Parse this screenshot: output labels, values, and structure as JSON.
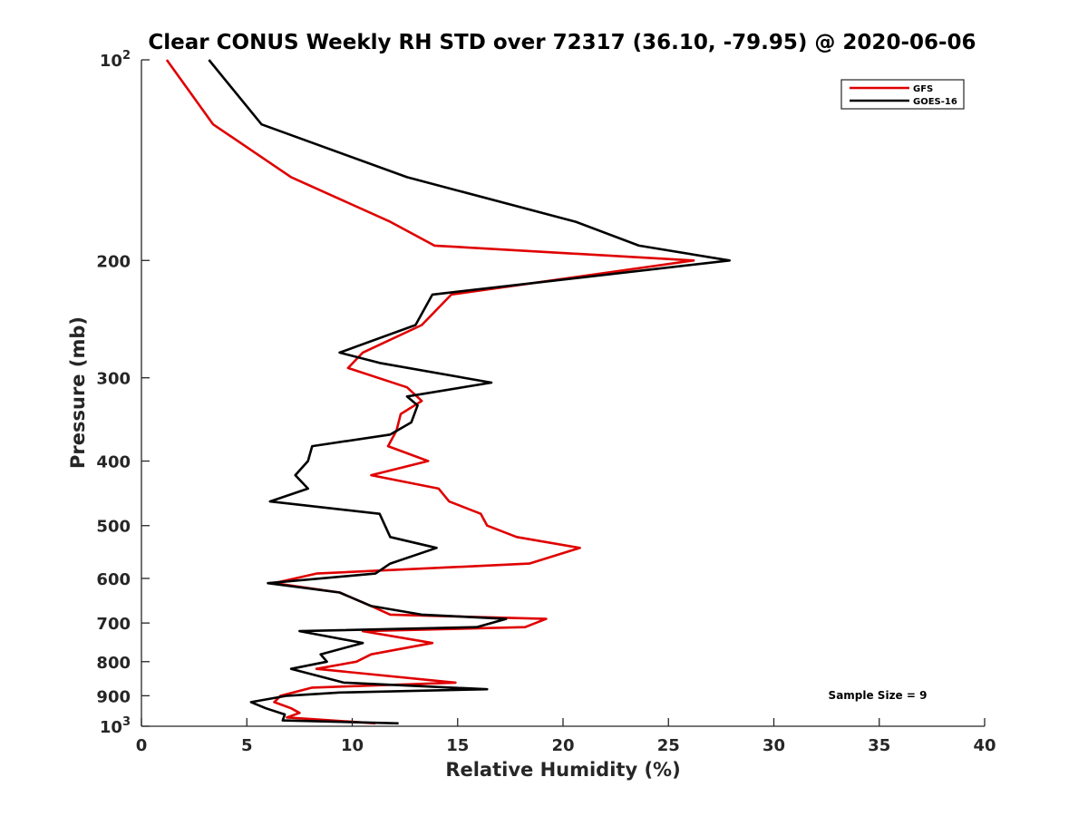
{
  "chart_data": {
    "type": "line",
    "title": "Clear CONUS Weekly RH STD over 72317 (36.10, -79.95) @ 2020-06-06",
    "xlabel": "Relative Humidity (%)",
    "ylabel": "Pressure (mb)",
    "xlim": [
      0,
      40
    ],
    "ylim": [
      100,
      1000
    ],
    "y_scale": "log",
    "y_reversed": true,
    "x_ticks": [
      "0",
      "5",
      "10",
      "15",
      "20",
      "25",
      "30",
      "35",
      "40"
    ],
    "x_tick_values": [
      0,
      5,
      10,
      15,
      20,
      25,
      30,
      35,
      40
    ],
    "y_ticks": [
      {
        "value": 100,
        "base": "10",
        "exp": "2"
      },
      {
        "value": 200,
        "base": "200",
        "exp": ""
      },
      {
        "value": 300,
        "base": "300",
        "exp": ""
      },
      {
        "value": 400,
        "base": "400",
        "exp": ""
      },
      {
        "value": 500,
        "base": "500",
        "exp": ""
      },
      {
        "value": 600,
        "base": "600",
        "exp": ""
      },
      {
        "value": 700,
        "base": "700",
        "exp": ""
      },
      {
        "value": 800,
        "base": "800",
        "exp": ""
      },
      {
        "value": 900,
        "base": "900",
        "exp": ""
      },
      {
        "value": 1000,
        "base": "10",
        "exp": "3"
      }
    ],
    "grid": false,
    "legend_position": "top-right",
    "annotation": "Sample Size = 9",
    "series": [
      {
        "name": "GFS",
        "color": "#e00000",
        "points": [
          [
            1.2,
            100
          ],
          [
            3.4,
            125
          ],
          [
            7.1,
            150
          ],
          [
            11.8,
            175
          ],
          [
            13.9,
            190
          ],
          [
            26.2,
            200
          ],
          [
            14.7,
            225
          ],
          [
            13.3,
            250
          ],
          [
            10.5,
            275
          ],
          [
            9.8,
            290
          ],
          [
            12.6,
            310
          ],
          [
            13.3,
            325
          ],
          [
            12.3,
            340
          ],
          [
            12.1,
            360
          ],
          [
            11.7,
            380
          ],
          [
            13.6,
            400
          ],
          [
            10.9,
            420
          ],
          [
            14.1,
            440
          ],
          [
            14.6,
            460
          ],
          [
            16.1,
            480
          ],
          [
            16.4,
            500
          ],
          [
            17.8,
            520
          ],
          [
            20.8,
            540
          ],
          [
            18.4,
            570
          ],
          [
            8.3,
            590
          ],
          [
            6.3,
            610
          ],
          [
            9.4,
            630
          ],
          [
            10.9,
            660
          ],
          [
            11.8,
            680
          ],
          [
            19.2,
            690
          ],
          [
            18.2,
            710
          ],
          [
            10.5,
            720
          ],
          [
            13.8,
            750
          ],
          [
            10.9,
            780
          ],
          [
            10.2,
            800
          ],
          [
            8.3,
            820
          ],
          [
            14.9,
            860
          ],
          [
            8.1,
            875
          ],
          [
            6.6,
            900
          ],
          [
            6.3,
            920
          ],
          [
            7.1,
            940
          ],
          [
            7.5,
            955
          ],
          [
            6.9,
            970
          ],
          [
            11.1,
            990
          ]
        ]
      },
      {
        "name": "GOES-16",
        "color": "#000000",
        "points": [
          [
            3.2,
            100
          ],
          [
            5.7,
            125
          ],
          [
            12.6,
            150
          ],
          [
            20.6,
            175
          ],
          [
            23.6,
            190
          ],
          [
            27.9,
            200
          ],
          [
            13.8,
            225
          ],
          [
            13.0,
            250
          ],
          [
            9.4,
            275
          ],
          [
            11.3,
            285
          ],
          [
            16.6,
            305
          ],
          [
            12.6,
            320
          ],
          [
            13.1,
            330
          ],
          [
            12.8,
            350
          ],
          [
            11.8,
            365
          ],
          [
            8.1,
            380
          ],
          [
            7.9,
            400
          ],
          [
            7.3,
            420
          ],
          [
            7.9,
            440
          ],
          [
            6.1,
            460
          ],
          [
            11.3,
            480
          ],
          [
            11.8,
            520
          ],
          [
            14.0,
            540
          ],
          [
            11.8,
            570
          ],
          [
            11.1,
            590
          ],
          [
            6.0,
            610
          ],
          [
            9.4,
            630
          ],
          [
            10.9,
            660
          ],
          [
            13.3,
            680
          ],
          [
            17.3,
            690
          ],
          [
            15.9,
            710
          ],
          [
            7.5,
            720
          ],
          [
            10.5,
            750
          ],
          [
            8.5,
            780
          ],
          [
            8.8,
            800
          ],
          [
            7.1,
            820
          ],
          [
            9.6,
            860
          ],
          [
            16.4,
            880
          ],
          [
            9.4,
            890
          ],
          [
            6.9,
            900
          ],
          [
            5.2,
            920
          ],
          [
            5.9,
            940
          ],
          [
            6.8,
            960
          ],
          [
            6.7,
            980
          ],
          [
            12.2,
            990
          ]
        ]
      }
    ]
  }
}
